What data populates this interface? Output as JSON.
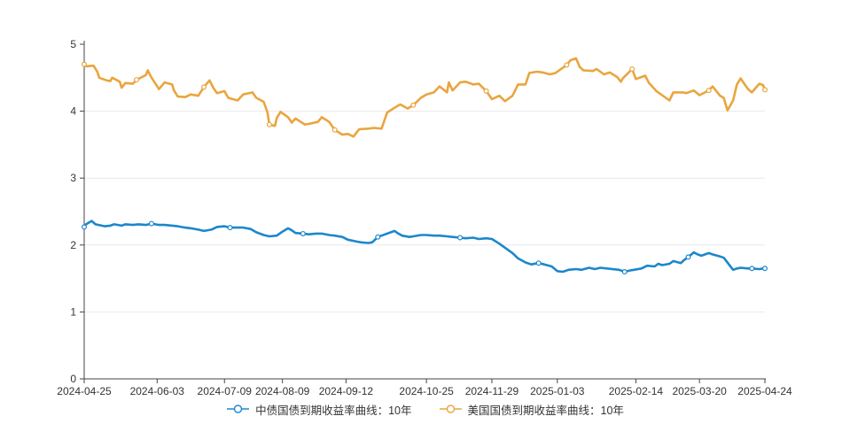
{
  "chart_data": {
    "type": "line",
    "title": "",
    "xlabel": "",
    "ylabel": "",
    "grid": true,
    "legend_position": "bottom",
    "y_axis": {
      "min": 0,
      "max": 5,
      "ticks": [
        0,
        1,
        2,
        3,
        4,
        5
      ]
    },
    "x_axis": {
      "range": [
        "2024-04-25",
        "2025-04-24"
      ],
      "ticks": [
        "2024-04-25",
        "2024-06-03",
        "2024-07-09",
        "2024-08-09",
        "2024-09-12",
        "2024-10-25",
        "2024-11-29",
        "2025-01-03",
        "2025-02-14",
        "2025-03-20",
        "2025-04-24"
      ]
    },
    "colors": {
      "china": "#1b87cc",
      "us": "#e9a53e",
      "axis": "#444444",
      "grid_line": "#e9e9e9",
      "tick_text": "#333333"
    },
    "series": [
      {
        "key": "china-10y",
        "name": "中债国债到期收益率曲线：10年",
        "color": "#1b87cc",
        "points": [
          [
            "2024-04-25",
            2.27
          ],
          [
            "2024-04-26",
            2.31
          ],
          [
            "2024-04-29",
            2.36
          ],
          [
            "2024-05-01",
            2.31
          ],
          [
            "2024-05-06",
            2.28
          ],
          [
            "2024-05-09",
            2.29
          ],
          [
            "2024-05-11",
            2.31
          ],
          [
            "2024-05-15",
            2.29
          ],
          [
            "2024-05-17",
            2.31
          ],
          [
            "2024-05-21",
            2.3
          ],
          [
            "2024-05-24",
            2.31
          ],
          [
            "2024-05-28",
            2.3
          ],
          [
            "2024-05-31",
            2.32
          ],
          [
            "2024-06-04",
            2.3
          ],
          [
            "2024-06-07",
            2.3
          ],
          [
            "2024-06-11",
            2.29
          ],
          [
            "2024-06-14",
            2.28
          ],
          [
            "2024-06-18",
            2.26
          ],
          [
            "2024-06-21",
            2.25
          ],
          [
            "2024-06-25",
            2.23
          ],
          [
            "2024-06-28",
            2.21
          ],
          [
            "2024-07-02",
            2.23
          ],
          [
            "2024-07-05",
            2.27
          ],
          [
            "2024-07-09",
            2.28
          ],
          [
            "2024-07-12",
            2.26
          ],
          [
            "2024-07-16",
            2.26
          ],
          [
            "2024-07-19",
            2.26
          ],
          [
            "2024-07-23",
            2.24
          ],
          [
            "2024-07-26",
            2.19
          ],
          [
            "2024-07-30",
            2.15
          ],
          [
            "2024-08-02",
            2.13
          ],
          [
            "2024-08-06",
            2.14
          ],
          [
            "2024-08-09",
            2.2
          ],
          [
            "2024-08-12",
            2.25
          ],
          [
            "2024-08-14",
            2.22
          ],
          [
            "2024-08-16",
            2.18
          ],
          [
            "2024-08-20",
            2.17
          ],
          [
            "2024-08-23",
            2.16
          ],
          [
            "2024-08-27",
            2.17
          ],
          [
            "2024-08-30",
            2.17
          ],
          [
            "2024-09-03",
            2.15
          ],
          [
            "2024-09-06",
            2.14
          ],
          [
            "2024-09-10",
            2.12
          ],
          [
            "2024-09-13",
            2.08
          ],
          [
            "2024-09-18",
            2.05
          ],
          [
            "2024-09-20",
            2.04
          ],
          [
            "2024-09-24",
            2.03
          ],
          [
            "2024-09-26",
            2.04
          ],
          [
            "2024-09-29",
            2.12
          ],
          [
            "2024-10-08",
            2.21
          ],
          [
            "2024-10-10",
            2.17
          ],
          [
            "2024-10-12",
            2.14
          ],
          [
            "2024-10-16",
            2.12
          ],
          [
            "2024-10-18",
            2.13
          ],
          [
            "2024-10-22",
            2.15
          ],
          [
            "2024-10-25",
            2.15
          ],
          [
            "2024-10-29",
            2.14
          ],
          [
            "2024-11-01",
            2.14
          ],
          [
            "2024-11-05",
            2.13
          ],
          [
            "2024-11-08",
            2.12
          ],
          [
            "2024-11-12",
            2.11
          ],
          [
            "2024-11-15",
            2.1
          ],
          [
            "2024-11-19",
            2.11
          ],
          [
            "2024-11-22",
            2.09
          ],
          [
            "2024-11-26",
            2.1
          ],
          [
            "2024-11-29",
            2.09
          ],
          [
            "2024-12-03",
            2.02
          ],
          [
            "2024-12-06",
            1.96
          ],
          [
            "2024-12-10",
            1.88
          ],
          [
            "2024-12-13",
            1.8
          ],
          [
            "2024-12-17",
            1.74
          ],
          [
            "2024-12-20",
            1.71
          ],
          [
            "2024-12-24",
            1.73
          ],
          [
            "2024-12-27",
            1.71
          ],
          [
            "2024-12-31",
            1.68
          ],
          [
            "2025-01-03",
            1.61
          ],
          [
            "2025-01-06",
            1.6
          ],
          [
            "2025-01-09",
            1.63
          ],
          [
            "2025-01-13",
            1.64
          ],
          [
            "2025-01-16",
            1.63
          ],
          [
            "2025-01-20",
            1.66
          ],
          [
            "2025-01-23",
            1.64
          ],
          [
            "2025-01-26",
            1.66
          ],
          [
            "2025-02-05",
            1.63
          ],
          [
            "2025-02-08",
            1.6
          ],
          [
            "2025-02-11",
            1.62
          ],
          [
            "2025-02-13",
            1.63
          ],
          [
            "2025-02-17",
            1.65
          ],
          [
            "2025-02-20",
            1.69
          ],
          [
            "2025-02-24",
            1.68
          ],
          [
            "2025-02-26",
            1.72
          ],
          [
            "2025-02-28",
            1.7
          ],
          [
            "2025-03-04",
            1.72
          ],
          [
            "2025-03-06",
            1.76
          ],
          [
            "2025-03-10",
            1.73
          ],
          [
            "2025-03-12",
            1.78
          ],
          [
            "2025-03-14",
            1.82
          ],
          [
            "2025-03-17",
            1.89
          ],
          [
            "2025-03-19",
            1.86
          ],
          [
            "2025-03-21",
            1.84
          ],
          [
            "2025-03-25",
            1.88
          ],
          [
            "2025-03-27",
            1.86
          ],
          [
            "2025-03-31",
            1.83
          ],
          [
            "2025-04-02",
            1.81
          ],
          [
            "2025-04-07",
            1.63
          ],
          [
            "2025-04-09",
            1.65
          ],
          [
            "2025-04-11",
            1.66
          ],
          [
            "2025-04-15",
            1.65
          ],
          [
            "2025-04-17",
            1.65
          ],
          [
            "2025-04-21",
            1.64
          ],
          [
            "2025-04-23",
            1.65
          ],
          [
            "2025-04-24",
            1.65
          ]
        ]
      },
      {
        "key": "us-10y",
        "name": "美国国债到期收益率曲线：10年",
        "color": "#e9a53e",
        "points": [
          [
            "2024-04-25",
            4.7
          ],
          [
            "2024-04-26",
            4.67
          ],
          [
            "2024-04-30",
            4.68
          ],
          [
            "2024-05-02",
            4.59
          ],
          [
            "2024-05-03",
            4.5
          ],
          [
            "2024-05-07",
            4.46
          ],
          [
            "2024-05-09",
            4.45
          ],
          [
            "2024-05-10",
            4.5
          ],
          [
            "2024-05-14",
            4.44
          ],
          [
            "2024-05-15",
            4.35
          ],
          [
            "2024-05-17",
            4.42
          ],
          [
            "2024-05-21",
            4.41
          ],
          [
            "2024-05-23",
            4.47
          ],
          [
            "2024-05-28",
            4.54
          ],
          [
            "2024-05-29",
            4.61
          ],
          [
            "2024-05-31",
            4.5
          ],
          [
            "2024-06-04",
            4.33
          ],
          [
            "2024-06-07",
            4.43
          ],
          [
            "2024-06-11",
            4.4
          ],
          [
            "2024-06-12",
            4.31
          ],
          [
            "2024-06-14",
            4.22
          ],
          [
            "2024-06-18",
            4.21
          ],
          [
            "2024-06-21",
            4.25
          ],
          [
            "2024-06-25",
            4.23
          ],
          [
            "2024-06-28",
            4.36
          ],
          [
            "2024-07-01",
            4.46
          ],
          [
            "2024-07-03",
            4.35
          ],
          [
            "2024-07-05",
            4.27
          ],
          [
            "2024-07-09",
            4.3
          ],
          [
            "2024-07-11",
            4.2
          ],
          [
            "2024-07-16",
            4.16
          ],
          [
            "2024-07-19",
            4.25
          ],
          [
            "2024-07-24",
            4.28
          ],
          [
            "2024-07-26",
            4.2
          ],
          [
            "2024-07-30",
            4.14
          ],
          [
            "2024-08-01",
            3.98
          ],
          [
            "2024-08-02",
            3.8
          ],
          [
            "2024-08-05",
            3.78
          ],
          [
            "2024-08-06",
            3.9
          ],
          [
            "2024-08-08",
            3.99
          ],
          [
            "2024-08-12",
            3.91
          ],
          [
            "2024-08-14",
            3.83
          ],
          [
            "2024-08-16",
            3.89
          ],
          [
            "2024-08-21",
            3.8
          ],
          [
            "2024-08-23",
            3.81
          ],
          [
            "2024-08-28",
            3.84
          ],
          [
            "2024-08-30",
            3.91
          ],
          [
            "2024-09-03",
            3.84
          ],
          [
            "2024-09-06",
            3.72
          ],
          [
            "2024-09-10",
            3.65
          ],
          [
            "2024-09-13",
            3.66
          ],
          [
            "2024-09-16",
            3.62
          ],
          [
            "2024-09-19",
            3.73
          ],
          [
            "2024-09-24",
            3.74
          ],
          [
            "2024-09-27",
            3.75
          ],
          [
            "2024-10-01",
            3.74
          ],
          [
            "2024-10-04",
            3.98
          ],
          [
            "2024-10-09",
            4.07
          ],
          [
            "2024-10-11",
            4.1
          ],
          [
            "2024-10-15",
            4.04
          ],
          [
            "2024-10-18",
            4.09
          ],
          [
            "2024-10-22",
            4.2
          ],
          [
            "2024-10-25",
            4.25
          ],
          [
            "2024-10-29",
            4.28
          ],
          [
            "2024-11-01",
            4.37
          ],
          [
            "2024-11-05",
            4.28
          ],
          [
            "2024-11-06",
            4.43
          ],
          [
            "2024-11-08",
            4.31
          ],
          [
            "2024-11-12",
            4.43
          ],
          [
            "2024-11-15",
            4.44
          ],
          [
            "2024-11-19",
            4.4
          ],
          [
            "2024-11-22",
            4.41
          ],
          [
            "2024-11-26",
            4.3
          ],
          [
            "2024-11-29",
            4.18
          ],
          [
            "2024-12-03",
            4.23
          ],
          [
            "2024-12-06",
            4.15
          ],
          [
            "2024-12-10",
            4.23
          ],
          [
            "2024-12-13",
            4.4
          ],
          [
            "2024-12-17",
            4.4
          ],
          [
            "2024-12-19",
            4.57
          ],
          [
            "2024-12-23",
            4.59
          ],
          [
            "2024-12-26",
            4.58
          ],
          [
            "2024-12-30",
            4.55
          ],
          [
            "2025-01-02",
            4.57
          ],
          [
            "2025-01-08",
            4.69
          ],
          [
            "2025-01-10",
            4.76
          ],
          [
            "2025-01-13",
            4.79
          ],
          [
            "2025-01-15",
            4.66
          ],
          [
            "2025-01-17",
            4.61
          ],
          [
            "2025-01-22",
            4.6
          ],
          [
            "2025-01-24",
            4.63
          ],
          [
            "2025-01-28",
            4.55
          ],
          [
            "2025-01-31",
            4.58
          ],
          [
            "2025-02-04",
            4.51
          ],
          [
            "2025-02-06",
            4.44
          ],
          [
            "2025-02-07",
            4.49
          ],
          [
            "2025-02-12",
            4.63
          ],
          [
            "2025-02-14",
            4.48
          ],
          [
            "2025-02-19",
            4.53
          ],
          [
            "2025-02-21",
            4.42
          ],
          [
            "2025-02-25",
            4.3
          ],
          [
            "2025-02-28",
            4.24
          ],
          [
            "2025-03-04",
            4.16
          ],
          [
            "2025-03-06",
            4.28
          ],
          [
            "2025-03-11",
            4.28
          ],
          [
            "2025-03-13",
            4.27
          ],
          [
            "2025-03-17",
            4.31
          ],
          [
            "2025-03-20",
            4.24
          ],
          [
            "2025-03-25",
            4.31
          ],
          [
            "2025-03-27",
            4.37
          ],
          [
            "2025-03-31",
            4.23
          ],
          [
            "2025-04-02",
            4.2
          ],
          [
            "2025-04-04",
            4.01
          ],
          [
            "2025-04-07",
            4.16
          ],
          [
            "2025-04-09",
            4.4
          ],
          [
            "2025-04-11",
            4.49
          ],
          [
            "2025-04-15",
            4.33
          ],
          [
            "2025-04-17",
            4.28
          ],
          [
            "2025-04-21",
            4.41
          ],
          [
            "2025-04-23",
            4.39
          ],
          [
            "2025-04-24",
            4.32
          ]
        ]
      }
    ]
  }
}
